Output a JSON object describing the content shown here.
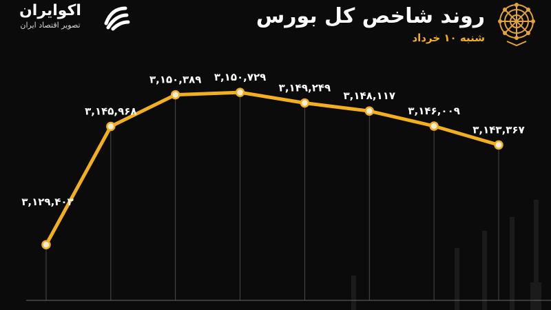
{
  "header": {
    "title": "روند شاخص کل بورس",
    "subtitle": "شنبه ۱۰ خرداد"
  },
  "brand": {
    "name": "اکوایران",
    "tagline": "تصویر اقتصاد ایران"
  },
  "colors": {
    "background": "#0b0b0b",
    "line": "#f2b01e",
    "point_fill": "#f3ecd9",
    "text": "#ffffff",
    "accent": "#f2b01e"
  },
  "chart_data": {
    "type": "line",
    "ylim": [
      3100000,
      3160000
    ],
    "grid": false,
    "series": [
      {
        "values": [
          3129403,
          3145968,
          3150389,
          3150729,
          3149249,
          3148117,
          3146009,
          3143367
        ],
        "labels": [
          "۳,۱۲۹,۴۰۳",
          "۳,۱۴۵,۹۶۸",
          "۳,۱۵۰,۳۸۹",
          "۳,۱۵۰,۷۲۹",
          "۳,۱۴۹,۲۴۹",
          "۳,۱۴۸,۱۱۷",
          "۳,۱۴۶,۰۰۹",
          "۳,۱۴۳,۳۶۷"
        ]
      }
    ]
  }
}
